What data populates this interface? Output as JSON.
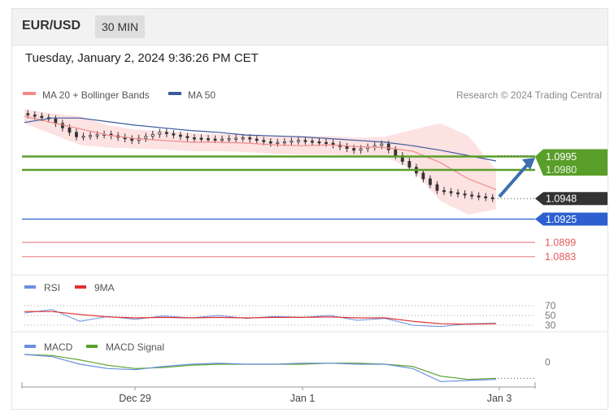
{
  "header": {
    "symbol": "EUR/USD",
    "timeframe": "30 MIN"
  },
  "timestamp": "Tuesday, January 2, 2024 9:36:26 PM CET",
  "colors": {
    "ma20": "#f08a8a",
    "ma50": "#3d5a9e",
    "band_fill": "#fde2e2",
    "resistance": "#5a9e2a",
    "support": "#2e5fd0",
    "target_red": "#e65a5a",
    "rsi": "#6a8fe0",
    "rsi9ma": "#e03030",
    "macd": "#6a8fe0",
    "macd_signal": "#5aa02a",
    "candle": "#333333"
  },
  "chart_data": [
    {
      "type": "line",
      "panel": "price",
      "legend": [
        {
          "name": "MA 20 + Bollinger Bands",
          "color": "#f08a8a"
        },
        {
          "name": "MA 50",
          "color": "#3d5a9e"
        }
      ],
      "credit": "Research © 2024 Trading Central",
      "x_labels": [
        "Dec 29",
        "Jan 1",
        "Jan 3"
      ],
      "ylim": [
        1.087,
        1.105
      ],
      "series": [
        {
          "name": "MA 20 + Bollinger Bands",
          "values": [
            1.104,
            1.1033,
            1.1026,
            1.1019,
            1.1015,
            1.1013,
            1.1011,
            1.1011,
            1.101,
            1.1008,
            1.1007,
            1.1008,
            1.1006,
            1.1005,
            1.1001,
            1.0988,
            1.097,
            1.0958
          ]
        },
        {
          "name": "MA 50",
          "values": [
            1.1033,
            1.1038,
            1.1038,
            1.1034,
            1.103,
            1.1027,
            1.1024,
            1.1022,
            1.1019,
            1.1018,
            1.1017,
            1.1015,
            1.1013,
            1.1011,
            1.1007,
            1.1002,
            1.0996,
            1.099
          ]
        },
        {
          "name": "Bollinger upper",
          "values": [
            1.1048,
            1.1043,
            1.104,
            1.103,
            1.1025,
            1.1024,
            1.1021,
            1.102,
            1.102,
            1.1018,
            1.1018,
            1.1018,
            1.1016,
            1.1017,
            1.1025,
            1.1032,
            1.1018,
            1.098
          ]
        },
        {
          "name": "Bollinger lower",
          "values": [
            1.1032,
            1.102,
            1.1008,
            1.1005,
            1.1004,
            1.1003,
            1.1001,
            1.1001,
            1.1,
            1.0998,
            1.0997,
            1.0997,
            1.0996,
            1.0995,
            1.098,
            1.0945,
            1.093,
            1.0936
          ]
        },
        {
          "name": "Close",
          "values": [
            1.1043,
            1.1037,
            1.1017,
            1.102,
            1.1013,
            1.1022,
            1.1016,
            1.1014,
            1.1016,
            1.101,
            1.1013,
            1.101,
            1.1002,
            1.1009,
            1.0983,
            1.0957,
            1.0952,
            1.0948
          ]
        }
      ],
      "levels": [
        {
          "label": "1.0995",
          "value": 1.0995,
          "kind": "resistance",
          "tag": true
        },
        {
          "label": "1.0980",
          "value": 1.098,
          "kind": "resistance",
          "tag": false
        },
        {
          "label": "1.0948",
          "value": 1.0948,
          "kind": "last",
          "tag": true
        },
        {
          "label": "1.0925",
          "value": 1.0925,
          "kind": "support",
          "tag": true
        },
        {
          "label": "1.0899",
          "value": 1.0899,
          "kind": "target",
          "tag": false
        },
        {
          "label": "1.0883",
          "value": 1.0883,
          "kind": "target",
          "tag": false
        }
      ]
    },
    {
      "type": "line",
      "panel": "rsi",
      "legend": [
        {
          "name": "RSI",
          "color": "#6a8fe0"
        },
        {
          "name": "9MA",
          "color": "#e03030"
        }
      ],
      "ticks": [
        "70",
        "50",
        "30"
      ],
      "ylim": [
        20,
        80
      ],
      "series": [
        {
          "name": "RSI",
          "values": [
            55,
            62,
            38,
            48,
            42,
            49,
            45,
            50,
            44,
            48,
            46,
            50,
            40,
            44,
            30,
            27,
            33,
            34
          ]
        },
        {
          "name": "9MA",
          "values": [
            58,
            58,
            52,
            47,
            45,
            46,
            45,
            46,
            45,
            46,
            46,
            47,
            45,
            45,
            38,
            33,
            32,
            33
          ]
        }
      ]
    },
    {
      "type": "line",
      "panel": "macd",
      "legend": [
        {
          "name": "MACD",
          "color": "#6a8fe0"
        },
        {
          "name": "MACD Signal",
          "color": "#5aa02a"
        }
      ],
      "ticks": [
        "0"
      ],
      "ylim": [
        -0.002,
        0.001
      ],
      "series": [
        {
          "name": "MACD",
          "values": [
            0.0007,
            0.0005,
            -0.0002,
            -0.0006,
            -0.0007,
            -0.0004,
            -0.0002,
            -0.0001,
            -0.0002,
            -0.0002,
            -0.0001,
            -0.0001,
            -0.0002,
            -0.0002,
            -0.0006,
            -0.0018,
            -0.0017,
            -0.0016
          ]
        },
        {
          "name": "MACD Signal",
          "values": [
            0.0007,
            0.0006,
            0.0002,
            -0.0003,
            -0.0006,
            -0.0005,
            -0.0003,
            -0.0002,
            -0.0002,
            -0.0002,
            -0.0002,
            -0.0001,
            -0.0001,
            -0.0002,
            -0.0004,
            -0.0013,
            -0.0016,
            -0.0015
          ]
        }
      ]
    }
  ]
}
